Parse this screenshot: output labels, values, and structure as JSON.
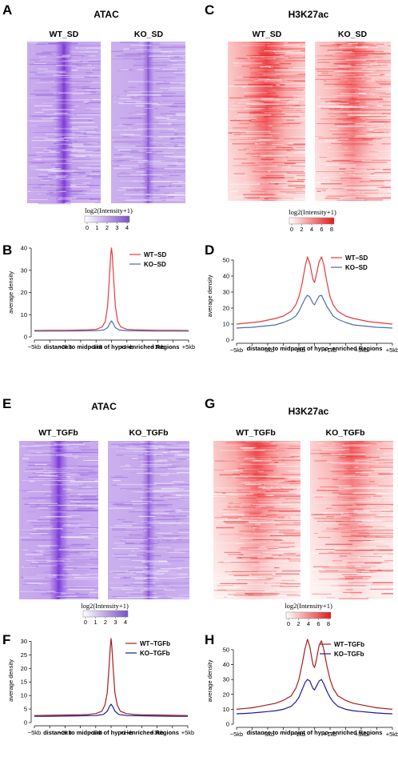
{
  "colors": {
    "atac_bg": "#c8a8ec",
    "atac_center": "#7a3ad8",
    "h3_bg": "#fdd2d2",
    "h3_center": "#e8191e",
    "wt_sd": "#e8383d",
    "ko_sd": "#4a6fa8",
    "wt_tgfb": "#a51b1b",
    "ko_tgfb": "#1a1a9e"
  },
  "panels": {
    "A": {
      "letter": "A",
      "title": "ATAC",
      "samples": [
        "WT_SD",
        "KO_SD"
      ],
      "colorbar_title": "log2(Intensity+1)",
      "colorbar_ticks": [
        "0",
        "1",
        "2",
        "3",
        "4"
      ]
    },
    "C": {
      "letter": "C",
      "title": "H3K27ac",
      "samples": [
        "WT_SD",
        "KO_SD"
      ],
      "colorbar_title": "log2(Intensity+1)",
      "colorbar_ticks": [
        "0",
        "2",
        "4",
        "6",
        "8"
      ]
    },
    "E": {
      "letter": "E",
      "title": "ATAC",
      "samples": [
        "WT_TGFb",
        "KO_TGFb"
      ],
      "colorbar_title": "log2(Intensity+1)",
      "colorbar_ticks": [
        "0",
        "1",
        "2",
        "3",
        "4"
      ]
    },
    "G": {
      "letter": "G",
      "title": "H3K27ac",
      "samples": [
        "WT_TGFb",
        "KO_TGFb"
      ],
      "colorbar_title": "log2(Intensity+1)",
      "colorbar_ticks": [
        "0",
        "2",
        "4",
        "6",
        "8"
      ]
    },
    "B": {
      "letter": "B"
    },
    "D": {
      "letter": "D"
    },
    "F": {
      "letter": "F"
    },
    "H": {
      "letter": "H"
    }
  },
  "chart_data": [
    {
      "id": "B",
      "type": "line",
      "xlabel": "distance to midpoint of hypo−enriched Regions",
      "ylabel": "average density",
      "xlim": [
        -5,
        5
      ],
      "ylim": [
        0,
        40
      ],
      "xticks": [
        "−5kb",
        "−3kb",
        "−1kb",
        "+1kb",
        "+3kb",
        "+5kb"
      ],
      "xtick_values": [
        -5,
        -3,
        -1,
        1,
        3,
        5
      ],
      "yticks": [
        "0",
        "10",
        "20",
        "30",
        "40"
      ],
      "ytick_values": [
        0,
        10,
        20,
        30,
        40
      ],
      "legend_position": "top-right",
      "series": [
        {
          "name": "WT−SD",
          "color": "#e8383d",
          "x": [
            -5,
            -4,
            -3,
            -2,
            -1.5,
            -1,
            -0.6,
            -0.4,
            -0.25,
            -0.15,
            -0.05,
            0,
            0.05,
            0.15,
            0.25,
            0.4,
            0.6,
            1,
            1.5,
            2,
            3,
            4,
            5
          ],
          "y": [
            2.9,
            3.0,
            3.0,
            3.1,
            3.2,
            3.4,
            4.5,
            7,
            14,
            25,
            37,
            40,
            37,
            25,
            14,
            7,
            4.5,
            3.4,
            3.2,
            3.1,
            3.0,
            3.0,
            2.9
          ]
        },
        {
          "name": "KO−SD",
          "color": "#4a6fa8",
          "x": [
            -5,
            -4,
            -3,
            -2,
            -1,
            -0.5,
            -0.25,
            -0.1,
            0,
            0.1,
            0.25,
            0.5,
            1,
            2,
            3,
            4,
            5
          ],
          "y": [
            2.6,
            2.6,
            2.6,
            2.7,
            2.8,
            3.1,
            4.2,
            6.2,
            7.2,
            6.2,
            4.2,
            3.1,
            2.8,
            2.7,
            2.6,
            2.6,
            2.6
          ]
        }
      ]
    },
    {
      "id": "D",
      "type": "line",
      "xlabel": "distance to midpoint of hypo−enriched Regions",
      "ylabel": "average density",
      "xlim": [
        -5,
        5
      ],
      "ylim": [
        0,
        55
      ],
      "xticks": [
        "−5kb",
        "−3kb",
        "−1kb",
        "+1kb",
        "+3kb",
        "+5kb"
      ],
      "xtick_values": [
        -5,
        -3,
        -1,
        1,
        3,
        5
      ],
      "yticks": [
        "0",
        "10",
        "20",
        "30",
        "40",
        "50"
      ],
      "ytick_values": [
        0,
        10,
        20,
        30,
        40,
        50
      ],
      "legend_position": "top-right",
      "series": [
        {
          "name": "WT−SD",
          "color": "#e8383d",
          "x": [
            -5,
            -4.5,
            -4,
            -3.5,
            -3,
            -2.5,
            -2,
            -1.5,
            -1.2,
            -1,
            -0.8,
            -0.6,
            -0.45,
            -0.3,
            -0.1,
            0,
            0.1,
            0.3,
            0.45,
            0.6,
            0.8,
            1,
            1.2,
            1.5,
            2,
            2.5,
            3,
            3.5,
            4,
            4.5,
            5
          ],
          "y": [
            10,
            10.5,
            11,
            11.5,
            12.5,
            13.5,
            15,
            18,
            22,
            27,
            35,
            46,
            52,
            48,
            38,
            36,
            40,
            49,
            52,
            47,
            36,
            27,
            22,
            18,
            15,
            13.5,
            12.5,
            11.5,
            11,
            10.5,
            10
          ]
        },
        {
          "name": "KO−SD",
          "color": "#4a6fa8",
          "x": [
            -5,
            -4.5,
            -4,
            -3.5,
            -3,
            -2.5,
            -2,
            -1.5,
            -1.2,
            -1,
            -0.8,
            -0.6,
            -0.45,
            -0.3,
            -0.1,
            0,
            0.1,
            0.3,
            0.45,
            0.6,
            0.8,
            1,
            1.2,
            1.5,
            2,
            2.5,
            3,
            3.5,
            4,
            4.5,
            5
          ],
          "y": [
            7.5,
            7.8,
            8,
            8.5,
            9,
            9.5,
            11,
            13,
            15,
            18,
            22,
            26,
            28,
            27,
            23,
            22,
            24,
            27.5,
            28,
            25,
            21,
            18,
            15,
            13,
            11,
            9.5,
            9,
            8.5,
            8,
            7.8,
            7.5
          ]
        }
      ]
    },
    {
      "id": "F",
      "type": "line",
      "xlabel": "distance to midpoint of hypo−enriched Regions",
      "ylabel": "average density",
      "xlim": [
        -5,
        5
      ],
      "ylim": [
        0,
        31
      ],
      "xticks": [
        "−5kb",
        "−3kb",
        "−1kb",
        "+1kb",
        "+3kb",
        "+5kb"
      ],
      "xtick_values": [
        -5,
        -3,
        -1,
        1,
        3,
        5
      ],
      "yticks": [
        "0",
        "5",
        "10",
        "15",
        "20",
        "25",
        "30"
      ],
      "ytick_values": [
        0,
        5,
        10,
        15,
        20,
        25,
        30
      ],
      "legend_position": "top-right",
      "series": [
        {
          "name": "WT−TGFb",
          "color": "#a51b1b",
          "x": [
            -5,
            -4,
            -3,
            -2,
            -1.5,
            -1,
            -0.6,
            -0.4,
            -0.25,
            -0.15,
            -0.05,
            0,
            0.05,
            0.15,
            0.25,
            0.4,
            0.6,
            1,
            1.5,
            2,
            3,
            4,
            5
          ],
          "y": [
            2.6,
            2.7,
            2.8,
            2.9,
            3.0,
            3.3,
            4.2,
            6.5,
            11,
            19,
            28,
            31,
            28,
            19,
            11,
            6.5,
            4.2,
            3.3,
            3.0,
            2.9,
            2.8,
            2.7,
            2.6
          ]
        },
        {
          "name": "KO−TGFb",
          "color": "#1a1a9e",
          "x": [
            -5,
            -4,
            -3,
            -2,
            -1,
            -0.5,
            -0.25,
            -0.1,
            0,
            0.1,
            0.25,
            0.5,
            1,
            2,
            3,
            4,
            5
          ],
          "y": [
            2.3,
            2.3,
            2.4,
            2.5,
            2.6,
            3.0,
            4.2,
            6.0,
            6.8,
            6.0,
            4.2,
            3.0,
            2.6,
            2.5,
            2.4,
            2.3,
            2.3
          ]
        }
      ]
    },
    {
      "id": "H",
      "type": "line",
      "xlabel": "distance to midpoint of hypo−enriched Regions",
      "ylabel": "average density",
      "xlim": [
        -5,
        5
      ],
      "ylim": [
        0,
        58
      ],
      "xticks": [
        "−5kb",
        "−3kb",
        "−1kb",
        "+1kb",
        "+3kb",
        "+5kb"
      ],
      "xtick_values": [
        -5,
        -3,
        -1,
        1,
        3,
        5
      ],
      "yticks": [
        "0",
        "10",
        "20",
        "30",
        "40",
        "50"
      ],
      "ytick_values": [
        0,
        10,
        20,
        30,
        40,
        50
      ],
      "legend_position": "top-right",
      "series": [
        {
          "name": "WT−TGFb",
          "color": "#a51b1b",
          "x": [
            -5,
            -4.5,
            -4,
            -3.5,
            -3,
            -2.5,
            -2,
            -1.5,
            -1.2,
            -1,
            -0.8,
            -0.6,
            -0.45,
            -0.3,
            -0.1,
            0,
            0.1,
            0.3,
            0.45,
            0.6,
            0.8,
            1,
            1.2,
            1.5,
            2,
            2.5,
            3,
            3.5,
            4,
            4.5,
            5
          ],
          "y": [
            10,
            10.5,
            11,
            12,
            13,
            14,
            16,
            19,
            24,
            30,
            40,
            51,
            57,
            52,
            40,
            38,
            42,
            53,
            56,
            50,
            39,
            30,
            24,
            19,
            16,
            14,
            13,
            12,
            11,
            10.5,
            10
          ]
        },
        {
          "name": "KO−TGFb",
          "color": "#1a1a9e",
          "x": [
            -5,
            -4.5,
            -4,
            -3.5,
            -3,
            -2.5,
            -2,
            -1.5,
            -1.2,
            -1,
            -0.8,
            -0.6,
            -0.45,
            -0.3,
            -0.1,
            0,
            0.1,
            0.3,
            0.45,
            0.6,
            0.8,
            1,
            1.2,
            1.5,
            2,
            2.5,
            3,
            3.5,
            4,
            4.5,
            5
          ],
          "y": [
            7,
            7.2,
            7.5,
            8,
            8.5,
            9,
            10,
            12,
            15,
            18,
            23,
            28,
            30,
            29,
            24,
            23,
            25,
            29,
            30,
            27,
            22,
            18,
            15,
            12,
            10,
            9,
            8.5,
            8,
            7.5,
            7.2,
            7
          ]
        }
      ]
    }
  ]
}
